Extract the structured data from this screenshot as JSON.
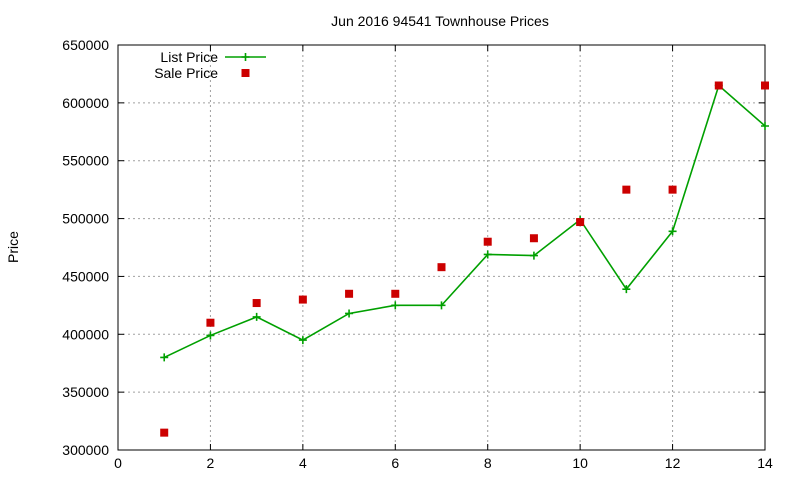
{
  "chart_data": {
    "type": "line",
    "title": "Jun 2016 94541 Townhouse Prices",
    "xlabel": "",
    "ylabel": "Price",
    "xlim": [
      0,
      14
    ],
    "ylim": [
      300000,
      650000
    ],
    "xticks": [
      0,
      2,
      4,
      6,
      8,
      10,
      12,
      14
    ],
    "yticks": [
      300000,
      350000,
      400000,
      450000,
      500000,
      550000,
      600000,
      650000
    ],
    "grid": true,
    "legend_position": "top-left",
    "series": [
      {
        "name": "List Price",
        "style": "line+cross",
        "color": "#00a000",
        "x": [
          1,
          2,
          3,
          4,
          5,
          6,
          7,
          8,
          9,
          10,
          11,
          12,
          13,
          14
        ],
        "values": [
          380000,
          399000,
          415000,
          395000,
          418000,
          425000,
          425000,
          469000,
          468000,
          499000,
          439000,
          489000,
          615000,
          580000
        ]
      },
      {
        "name": "Sale Price",
        "style": "square-marker",
        "color": "#cc0000",
        "x": [
          1,
          2,
          3,
          4,
          5,
          6,
          7,
          8,
          9,
          10,
          11,
          12,
          13,
          14
        ],
        "values": [
          315000,
          410000,
          427000,
          430000,
          435000,
          435000,
          458000,
          480000,
          483000,
          497000,
          525000,
          525000,
          615000,
          615000
        ]
      }
    ]
  }
}
